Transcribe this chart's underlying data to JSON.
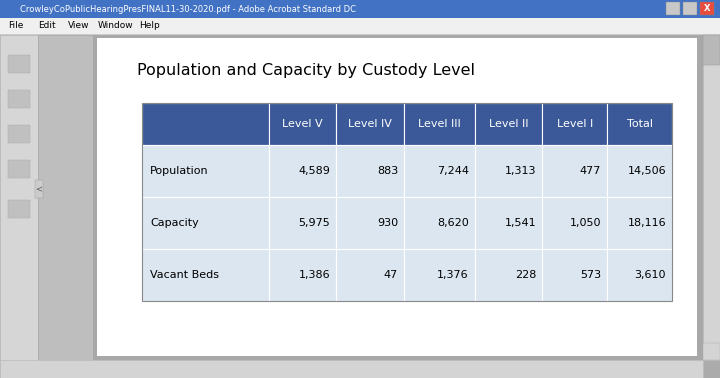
{
  "title": "Population and Capacity by Custody Level",
  "title_fontsize": 11.5,
  "header_row": [
    "",
    "Level V",
    "Level IV",
    "Level III",
    "Level II",
    "Level I",
    "Total"
  ],
  "rows": [
    [
      "Population",
      "4,589",
      "883",
      "7,244",
      "1,313",
      "477",
      "14,506"
    ],
    [
      "Capacity",
      "5,975",
      "930",
      "8,620",
      "1,541",
      "1,050",
      "18,116"
    ],
    [
      "Vacant Beds",
      "1,386",
      "47",
      "1,376",
      "228",
      "573",
      "3,610"
    ]
  ],
  "header_bg": "#3b5998",
  "header_text_color": "#ffffff",
  "row_bg": "#dce6f1",
  "row_text_color": "#000000",
  "win_title_bg": "#4a7cc7",
  "win_title_text": "CrowleyCoPublicHearingPresFINAL11-30-2020.pdf - Adobe Acrobat Standard DC",
  "menu_bg": "#f0f0f0",
  "menu_items": [
    "File",
    "Edit",
    "View",
    "Window",
    "Help"
  ],
  "content_bg": "#c8c8c8",
  "page_bg": "#ffffff",
  "left_panel_bg": "#d4d4d4",
  "right_scroll_bg": "#d4d4d4",
  "bottom_scroll_bg": "#d4d4d4",
  "fig_bg": "#ababab"
}
